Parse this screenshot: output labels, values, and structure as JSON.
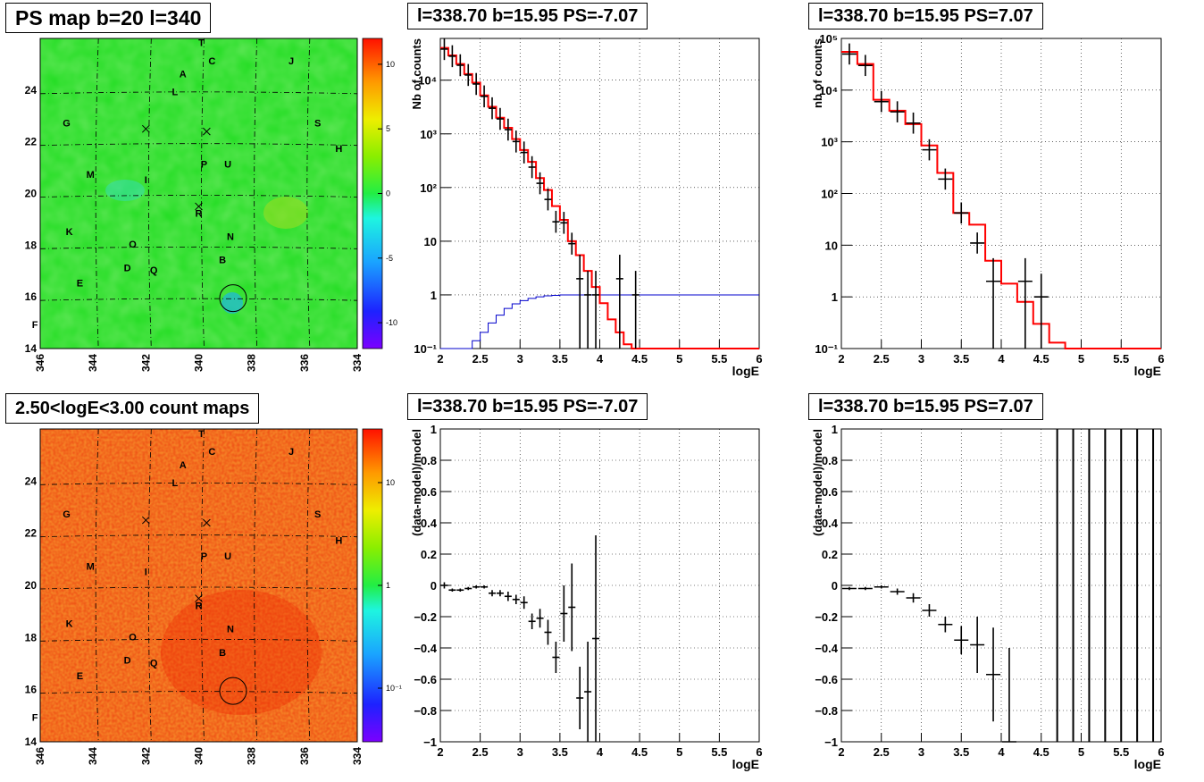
{
  "colors": {
    "data": "#000000",
    "model": "#ff0000",
    "background_model": "#0000cc",
    "grid": "#000000",
    "map_ps": "#22dd22",
    "map_counts": "#ee4411"
  },
  "charts": {
    "map_ps": {
      "title": "PS map b=20 l=340",
      "x_ticks": [
        "346",
        "344",
        "342",
        "340",
        "338",
        "336",
        "334"
      ],
      "y_ticks": [
        "14",
        "16",
        "18",
        "20",
        "22",
        "24"
      ],
      "colorbar_ticks": [
        "10",
        "5",
        "0",
        "-5",
        "-10"
      ]
    },
    "map_counts": {
      "title": "2.50<logE<3.00 count maps",
      "x_ticks": [
        "346",
        "344",
        "342",
        "340",
        "338",
        "336",
        "334"
      ],
      "y_ticks": [
        "14",
        "16",
        "18",
        "20",
        "22",
        "24"
      ],
      "colorbar_ticks": [
        "10",
        "1",
        "10⁻¹"
      ]
    },
    "spec_neg": {
      "title": "l=338.70 b=15.95 PS=-7.07",
      "xlabel": "logE",
      "ylabel": "Nb of counts",
      "x_ticks": [
        "2",
        "2.5",
        "3",
        "3.5",
        "4",
        "4.5",
        "5",
        "5.5",
        "6"
      ],
      "y_ticks": [
        "10⁻¹",
        "1",
        "10",
        "10²",
        "10³",
        "10⁴"
      ]
    },
    "spec_pos": {
      "title": "l=338.70 b=15.95 PS=7.07",
      "xlabel": "logE",
      "ylabel": "nb of counts",
      "x_ticks": [
        "2",
        "2.5",
        "3",
        "3.5",
        "4",
        "4.5",
        "5",
        "5.5",
        "6"
      ],
      "y_ticks": [
        "10⁻¹",
        "1",
        "10",
        "10²",
        "10³",
        "10⁴",
        "10⁵"
      ]
    },
    "res_neg": {
      "title": "l=338.70 b=15.95 PS=-7.07",
      "xlabel": "logE",
      "ylabel": "(data-model)/model",
      "x_ticks": [
        "2",
        "2.5",
        "3",
        "3.5",
        "4",
        "4.5",
        "5",
        "5.5",
        "6"
      ],
      "y_ticks": [
        "1",
        "0.8",
        "0.6",
        "0.4",
        "0.2",
        "0",
        "−0.2",
        "−0.4",
        "−0.6",
        "−0.8",
        "−1"
      ]
    },
    "res_pos": {
      "title": "l=338.70 b=15.95 PS=7.07",
      "xlabel": "logE",
      "ylabel": "(data-model)/model",
      "x_ticks": [
        "2",
        "2.5",
        "3",
        "3.5",
        "4",
        "4.5",
        "5",
        "5.5",
        "6"
      ],
      "y_ticks": [
        "1",
        "0.8",
        "0.6",
        "0.4",
        "0.2",
        "0",
        "−0.2",
        "−0.4",
        "−0.6",
        "−0.8",
        "−1"
      ]
    }
  },
  "map_labels": [
    {
      "t": "T",
      "l": 339.9,
      "b": 25.7
    },
    {
      "t": "C",
      "l": 339.5,
      "b": 25.0
    },
    {
      "t": "J",
      "l": 336.5,
      "b": 25.0
    },
    {
      "t": "A",
      "l": 340.6,
      "b": 24.5
    },
    {
      "t": "L",
      "l": 340.9,
      "b": 23.8
    },
    {
      "t": "G",
      "l": 345.0,
      "b": 22.6
    },
    {
      "t": "S",
      "l": 335.5,
      "b": 22.6
    },
    {
      "t": "H",
      "l": 334.7,
      "b": 21.6
    },
    {
      "t": "P",
      "l": 339.8,
      "b": 21.0
    },
    {
      "t": "U",
      "l": 338.9,
      "b": 21.0
    },
    {
      "t": "M",
      "l": 344.1,
      "b": 20.6
    },
    {
      "t": "I",
      "l": 342.0,
      "b": 20.4
    },
    {
      "t": "R",
      "l": 340.0,
      "b": 19.1
    },
    {
      "t": "K",
      "l": 344.9,
      "b": 18.4
    },
    {
      "t": "N",
      "l": 338.8,
      "b": 18.2
    },
    {
      "t": "O",
      "l": 342.5,
      "b": 17.9
    },
    {
      "t": "D",
      "l": 342.7,
      "b": 17.0
    },
    {
      "t": "Q",
      "l": 341.7,
      "b": 16.9
    },
    {
      "t": "B",
      "l": 339.1,
      "b": 17.3
    },
    {
      "t": "E",
      "l": 344.5,
      "b": 16.4
    },
    {
      "t": "F",
      "l": 346.2,
      "b": 14.8
    }
  ],
  "map_crosses": [
    {
      "l": 342.0,
      "b": 22.5
    },
    {
      "l": 339.7,
      "b": 22.4
    },
    {
      "l": 340.0,
      "b": 19.5
    }
  ],
  "map_circle": {
    "l": 338.7,
    "b": 15.95
  },
  "chart_data": [
    {
      "type": "line",
      "title": "l=338.70 b=15.95 PS=-7.07",
      "xlabel": "logE",
      "ylabel": "Nb of counts",
      "xlim": [
        2,
        6
      ],
      "ylim": [
        0.1,
        60000
      ],
      "log_y": true,
      "grid": true,
      "series": [
        {
          "kind": "model",
          "x": [
            2.0,
            2.1,
            2.2,
            2.3,
            2.4,
            2.5,
            2.6,
            2.7,
            2.8,
            2.9,
            3.0,
            3.1,
            3.2,
            3.3,
            3.4,
            3.5,
            3.6,
            3.7,
            3.8,
            3.9,
            4.0,
            4.1,
            4.2,
            4.3,
            4.4,
            4.5,
            6.0
          ],
          "values": [
            40000,
            29000,
            20000,
            13000,
            9000,
            5200,
            3200,
            2000,
            1300,
            800,
            500,
            300,
            150,
            90,
            45,
            25,
            10,
            5.5,
            2.8,
            1.4,
            0.7,
            0.35,
            0.2,
            0.12,
            0.1,
            0.1,
            0.1
          ]
        },
        {
          "kind": "background",
          "x": [
            2.0,
            2.1,
            2.2,
            2.3,
            2.4,
            2.5,
            2.6,
            2.7,
            2.8,
            2.9,
            3.0,
            3.1,
            3.2,
            3.3,
            3.4,
            3.5,
            3.6,
            3.7,
            4.0,
            6.0
          ],
          "values": [
            0.1,
            0.1,
            0.1,
            0.1,
            0.14,
            0.2,
            0.3,
            0.42,
            0.56,
            0.68,
            0.78,
            0.86,
            0.92,
            0.96,
            0.98,
            1.0,
            1.0,
            1.0,
            1.0,
            1.0
          ]
        },
        {
          "kind": "data",
          "x": [
            2.05,
            2.15,
            2.25,
            2.35,
            2.45,
            2.55,
            2.65,
            2.75,
            2.85,
            2.95,
            3.05,
            3.15,
            3.25,
            3.35,
            3.45,
            3.55,
            3.65,
            3.75,
            3.85,
            3.95,
            4.25,
            4.45
          ],
          "values": [
            38000,
            28000,
            19000,
            12500,
            8500,
            5000,
            3000,
            1900,
            1200,
            720,
            450,
            240,
            120,
            60,
            23,
            22,
            9,
            2,
            1,
            1,
            2,
            1
          ],
          "err_lo": [
            0,
            0,
            0,
            0,
            0,
            0,
            0,
            0,
            0,
            0,
            0,
            0,
            0,
            0,
            0,
            0,
            0,
            0,
            0.1,
            0.1,
            1.0,
            0.1
          ],
          "err_hi": [
            0,
            0,
            0,
            0,
            0,
            0,
            0,
            0,
            0,
            0,
            0,
            0,
            0,
            0,
            0,
            0,
            0,
            0,
            0,
            0,
            0,
            0
          ]
        }
      ]
    },
    {
      "type": "line",
      "title": "l=338.70 b=15.95 PS=7.07",
      "xlabel": "logE",
      "ylabel": "nb of counts",
      "xlim": [
        2,
        6
      ],
      "ylim": [
        0.1,
        100000
      ],
      "log_y": true,
      "grid": true,
      "series": [
        {
          "kind": "model",
          "x": [
            2.0,
            2.2,
            2.4,
            2.6,
            2.8,
            3.0,
            3.2,
            3.4,
            3.6,
            3.8,
            4.0,
            4.2,
            4.4,
            4.6,
            4.8,
            6.0
          ],
          "values": [
            55000,
            32000,
            6500,
            4000,
            2200,
            850,
            250,
            42,
            25,
            5,
            1.8,
            0.8,
            0.3,
            0.13,
            0.1,
            0.1
          ]
        },
        {
          "kind": "data",
          "x": [
            2.1,
            2.3,
            2.5,
            2.7,
            2.9,
            3.1,
            3.3,
            3.5,
            3.7,
            3.9,
            4.3,
            4.5
          ],
          "values": [
            50000,
            30000,
            6000,
            3800,
            2300,
            700,
            190,
            42,
            11,
            2,
            2,
            1
          ]
        }
      ]
    },
    {
      "type": "scatter",
      "title": "l=338.70 b=15.95 PS=-7.07",
      "xlabel": "logE",
      "ylabel": "(data-model)/model",
      "xlim": [
        2,
        6
      ],
      "ylim": [
        -1,
        1
      ],
      "grid": true,
      "series": [
        {
          "kind": "data",
          "x": [
            2.05,
            2.15,
            2.25,
            2.35,
            2.45,
            2.55,
            2.65,
            2.75,
            2.85,
            2.95,
            3.05,
            3.15,
            3.25,
            3.35,
            3.45,
            3.55,
            3.65,
            3.75,
            3.85,
            3.95
          ],
          "values": [
            0,
            -0.03,
            -0.03,
            -0.02,
            -0.01,
            -0.01,
            -0.05,
            -0.05,
            -0.07,
            -0.09,
            -0.11,
            -0.23,
            -0.21,
            -0.3,
            -0.46,
            -0.18,
            -0.14,
            -0.72,
            -0.68,
            -0.34
          ]
        }
      ]
    },
    {
      "type": "scatter",
      "title": "l=338.70 b=15.95 PS=7.07",
      "xlabel": "logE",
      "ylabel": "(data-model)/model",
      "xlim": [
        2,
        6
      ],
      "ylim": [
        -1,
        1
      ],
      "grid": true,
      "series": [
        {
          "kind": "data",
          "x": [
            2.1,
            2.3,
            2.5,
            2.7,
            2.9,
            3.1,
            3.3,
            3.5,
            3.7,
            3.9,
            4.1,
            4.7,
            4.9,
            5.1,
            5.3,
            5.5,
            5.7,
            5.9
          ],
          "values": [
            -0.02,
            -0.02,
            -0.01,
            -0.04,
            -0.08,
            -0.16,
            -0.25,
            -0.35,
            -0.38,
            -0.57,
            -1.0,
            1,
            1,
            1,
            1,
            1,
            1,
            1
          ]
        }
      ]
    }
  ]
}
